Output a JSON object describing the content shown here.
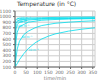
{
  "chart_data": {
    "type": "line",
    "title": "Temperature (in °C)",
    "x_label": "time/min",
    "xlim": [
      0,
      360
    ],
    "ylim": [
      100,
      1100
    ],
    "xticks": [
      0,
      50,
      100,
      150,
      200,
      250,
      300,
      350
    ],
    "yticks": [
      100,
      200,
      300,
      400,
      500,
      600,
      700,
      800,
      900,
      1000,
      1100
    ],
    "grid": true,
    "color": "#00ddee",
    "series": [
      {
        "name": "1100 m⁻¹",
        "x": [
          0,
          2,
          5,
          10,
          20,
          60,
          120,
          180,
          240,
          300,
          360
        ],
        "values": [
          100,
          920,
          950,
          960,
          970,
          975,
          980,
          985,
          990,
          990,
          992
        ]
      },
      {
        "name": "500 m⁻¹",
        "x": [
          0,
          2,
          5,
          10,
          20,
          60,
          120,
          180,
          240,
          300,
          360
        ],
        "values": [
          100,
          800,
          880,
          920,
          940,
          958,
          965,
          970,
          974,
          976,
          978
        ]
      },
      {
        "name": "200 m⁻¹",
        "x": [
          0,
          2,
          5,
          10,
          20,
          60,
          120,
          180,
          240,
          300,
          360
        ],
        "values": [
          100,
          600,
          780,
          860,
          900,
          940,
          955,
          962,
          966,
          968,
          970
        ]
      },
      {
        "name": "100 m⁻¹",
        "x": [
          0,
          2,
          5,
          10,
          20,
          60,
          120,
          180,
          240,
          300,
          360
        ],
        "values": [
          100,
          380,
          580,
          720,
          820,
          900,
          935,
          948,
          956,
          960,
          964
        ]
      },
      {
        "name": "80 m⁻¹",
        "x": [
          0,
          5,
          10,
          20,
          40,
          60,
          90,
          120,
          180,
          240,
          300,
          360
        ],
        "values": [
          100,
          280,
          420,
          560,
          680,
          740,
          800,
          840,
          880,
          900,
          915,
          926
        ]
      },
      {
        "name": "30 m⁻¹",
        "x": [
          0,
          10,
          20,
          40,
          60,
          90,
          120,
          150,
          180,
          240,
          300,
          360
        ],
        "values": [
          100,
          160,
          230,
          340,
          430,
          530,
          600,
          650,
          690,
          740,
          775,
          800
        ]
      }
    ],
    "annotations": [
      {
        "x": 8,
        "y": 975,
        "text": "1100 m⁻¹"
      },
      {
        "x": 8,
        "y": 945,
        "text": "500 m⁻¹"
      },
      {
        "x": 8,
        "y": 895,
        "text": "200 m⁻¹"
      },
      {
        "x": 8,
        "y": 840,
        "text": "100 m⁻¹"
      },
      {
        "x": 30,
        "y": 640,
        "text": "80 m⁻¹"
      },
      {
        "x": 60,
        "y": 395,
        "text": "30 m⁻¹"
      }
    ]
  }
}
